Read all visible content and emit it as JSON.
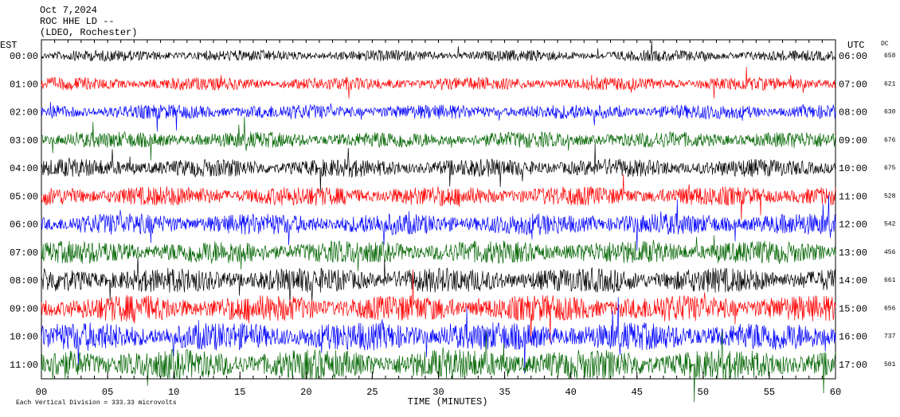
{
  "chart_data": {
    "type": "helicorder",
    "title_lines": [
      "Oct 7,2024",
      "ROC HHE LD --",
      "(LDEO, Rochester)"
    ],
    "left_axis_label": "EST",
    "right_axis_label": "UTC",
    "dc_label": "DC",
    "x_label": "TIME (MINUTES)",
    "footer": "Each Vertical Division = 333.33 microvolts",
    "xlim": [
      0,
      60
    ],
    "xticks": [
      {
        "value": 0,
        "label": "00"
      },
      {
        "value": 5,
        "label": "05"
      },
      10,
      15,
      20,
      25,
      30,
      35,
      40,
      45,
      50,
      55,
      60
    ],
    "rows": [
      {
        "local": "00:00",
        "utc": "06:00",
        "dc": 658,
        "color": "#000000"
      },
      {
        "local": "01:00",
        "utc": "07:00",
        "dc": 621,
        "color": "#ff0000"
      },
      {
        "local": "02:00",
        "utc": "08:00",
        "dc": 630,
        "color": "#0000ff"
      },
      {
        "local": "03:00",
        "utc": "09:00",
        "dc": 676,
        "color": "#006400"
      },
      {
        "local": "04:00",
        "utc": "10:00",
        "dc": 675,
        "color": "#000000"
      },
      {
        "local": "05:00",
        "utc": "11:00",
        "dc": 528,
        "color": "#ff0000"
      },
      {
        "local": "06:00",
        "utc": "12:00",
        "dc": 542,
        "color": "#0000ff"
      },
      {
        "local": "07:00",
        "utc": "13:00",
        "dc": 456,
        "color": "#006400"
      },
      {
        "local": "08:00",
        "utc": "14:00",
        "dc": 661,
        "color": "#000000"
      },
      {
        "local": "09:00",
        "utc": "15:00",
        "dc": 656,
        "color": "#ff0000"
      },
      {
        "local": "10:00",
        "utc": "16:00",
        "dc": 737,
        "color": "#0000ff"
      },
      {
        "local": "11:00",
        "utc": "17:00",
        "dc": 501,
        "color": "#006400"
      }
    ]
  }
}
